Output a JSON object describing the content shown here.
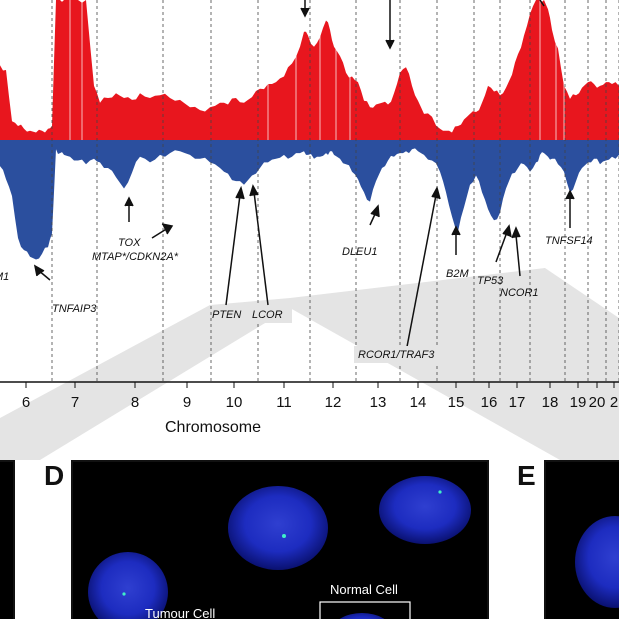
{
  "chart_data": {
    "type": "area",
    "xlabel": "Chromosome",
    "x_ticks": [
      "6",
      "7",
      "8",
      "9",
      "10",
      "11",
      "12",
      "13",
      "14",
      "15",
      "16",
      "17",
      "18",
      "19",
      "20",
      "2"
    ],
    "gain_color": "#e8161e",
    "loss_color": "#2b4f9e",
    "profile": {
      "x": [
        0,
        6,
        12,
        18,
        24,
        30,
        36,
        42,
        48,
        52,
        56,
        60,
        64,
        70,
        78,
        86,
        94,
        100,
        108,
        116,
        124,
        132,
        140,
        150,
        160,
        170,
        180,
        190,
        200,
        210,
        220,
        228,
        236,
        244,
        252,
        260,
        268,
        276,
        284,
        292,
        300,
        304,
        308,
        314,
        320,
        326,
        330,
        334,
        340,
        346,
        352,
        358,
        364,
        370,
        376,
        382,
        388,
        394,
        400,
        406,
        412,
        418,
        424,
        432,
        440,
        446,
        452,
        458,
        464,
        470,
        476,
        482,
        488,
        494,
        500,
        506,
        512,
        518,
        524,
        530,
        536,
        540,
        544,
        548,
        552,
        558,
        564,
        570,
        576,
        582,
        588,
        594,
        600,
        606,
        612,
        619
      ],
      "gain": [
        80,
        75,
        20,
        15,
        12,
        10,
        8,
        10,
        12,
        15,
        150,
        150,
        150,
        150,
        150,
        150,
        58,
        40,
        45,
        50,
        45,
        43,
        50,
        45,
        48,
        45,
        43,
        35,
        32,
        35,
        40,
        38,
        45,
        40,
        46,
        55,
        60,
        62,
        68,
        82,
        100,
        116,
        112,
        100,
        110,
        128,
        118,
        100,
        90,
        72,
        68,
        62,
        42,
        35,
        38,
        40,
        38,
        50,
        72,
        78,
        58,
        42,
        28,
        25,
        12,
        10,
        8,
        15,
        22,
        28,
        30,
        40,
        58,
        52,
        48,
        56,
        70,
        92,
        112,
        135,
        150,
        150,
        150,
        140,
        118,
        98,
        58,
        44,
        48,
        56,
        62,
        60,
        58,
        62,
        60,
        58
      ],
      "loss": [
        28,
        42,
        60,
        105,
        118,
        125,
        128,
        122,
        115,
        100,
        10,
        14,
        16,
        18,
        22,
        26,
        20,
        24,
        30,
        40,
        52,
        35,
        18,
        24,
        16,
        14,
        12,
        16,
        20,
        24,
        30,
        36,
        44,
        48,
        38,
        30,
        24,
        20,
        16,
        18,
        14,
        12,
        16,
        20,
        18,
        14,
        12,
        16,
        20,
        26,
        34,
        42,
        56,
        66,
        44,
        30,
        22,
        18,
        14,
        12,
        10,
        12,
        16,
        22,
        34,
        56,
        82,
        98,
        72,
        48,
        38,
        56,
        74,
        86,
        78,
        52,
        36,
        30,
        26,
        34,
        24,
        16,
        14,
        18,
        20,
        26,
        34,
        56,
        44,
        30,
        24,
        20,
        26,
        22,
        18,
        16
      ]
    },
    "annotations": [
      "M1",
      "TNFAIP3",
      "TOX",
      "MTAP*/CDKN2A*",
      "PTEN",
      "LCOR",
      "DLEU1",
      "RCOR1/TRAF3",
      "B2M",
      "TP53",
      "NCOR1",
      "TNFSF14"
    ],
    "panels": [
      {
        "letter": "D",
        "labels": [
          "Normal Cell",
          "Tumour Cell"
        ]
      },
      {
        "letter": "E",
        "labels": []
      }
    ]
  }
}
